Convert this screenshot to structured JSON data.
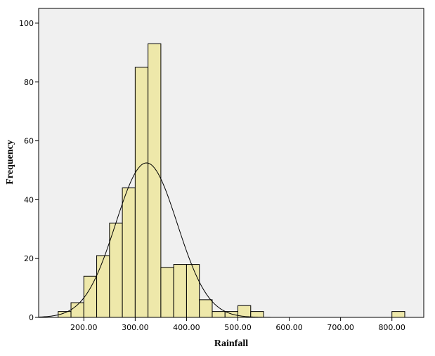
{
  "chart_data": {
    "type": "bar",
    "title": "",
    "xlabel": "Rainfall",
    "ylabel": "Frequency",
    "x_ticks": [
      200,
      300,
      400,
      500,
      600,
      700,
      800
    ],
    "x_tick_labels": [
      "200.00",
      "300.00",
      "400.00",
      "500.00",
      "600.00",
      "700.00",
      "800.00"
    ],
    "y_ticks": [
      0,
      20,
      40,
      60,
      80,
      100
    ],
    "y_tick_labels": [
      "0",
      "20",
      "40",
      "60",
      "80",
      "100"
    ],
    "xlim": [
      112,
      862
    ],
    "ylim": [
      0,
      105
    ],
    "bin_width": 25,
    "bins": [
      {
        "start": 150,
        "end": 175,
        "count": 2
      },
      {
        "start": 175,
        "end": 200,
        "count": 5
      },
      {
        "start": 200,
        "end": 225,
        "count": 14
      },
      {
        "start": 225,
        "end": 250,
        "count": 21
      },
      {
        "start": 250,
        "end": 275,
        "count": 32
      },
      {
        "start": 275,
        "end": 300,
        "count": 44
      },
      {
        "start": 300,
        "end": 325,
        "count": 85
      },
      {
        "start": 325,
        "end": 350,
        "count": 93
      },
      {
        "start": 350,
        "end": 375,
        "count": 17
      },
      {
        "start": 375,
        "end": 400,
        "count": 18
      },
      {
        "start": 400,
        "end": 425,
        "count": 18
      },
      {
        "start": 425,
        "end": 450,
        "count": 6
      },
      {
        "start": 450,
        "end": 475,
        "count": 2
      },
      {
        "start": 475,
        "end": 500,
        "count": 2
      },
      {
        "start": 500,
        "end": 525,
        "count": 4
      },
      {
        "start": 525,
        "end": 550,
        "count": 2
      },
      {
        "start": 800,
        "end": 825,
        "count": 2
      }
    ],
    "normal_curve": {
      "mean": 322,
      "sd": 60,
      "peak": 52.5
    },
    "bar_color": "#eee8aa",
    "plot_background": "#f0f0f0",
    "grid": false
  }
}
